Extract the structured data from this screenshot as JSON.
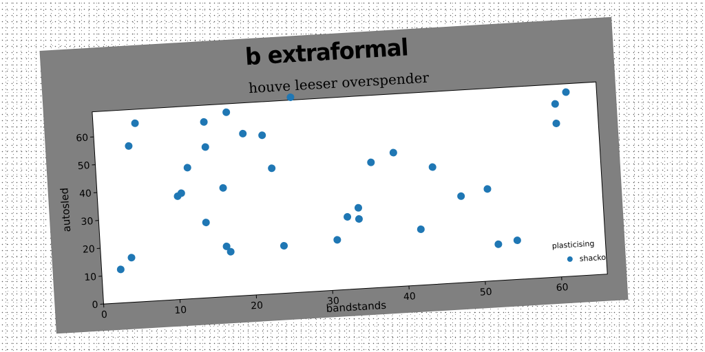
{
  "figure": {
    "suptitle": "b extraformal"
  },
  "chart_data": {
    "type": "scatter",
    "title": "houve leeser overspender",
    "xlabel": "bandstands",
    "ylabel": "autosled",
    "xlim": [
      0,
      66
    ],
    "ylim": [
      0,
      69
    ],
    "xticks": [
      0,
      10,
      20,
      30,
      40,
      50,
      60
    ],
    "yticks": [
      0,
      10,
      20,
      30,
      40,
      50,
      60
    ],
    "grid": false,
    "legend": {
      "title": "plasticising",
      "placement": "lower-right"
    },
    "series": [
      {
        "name": "shacko",
        "color": "#1f77b4",
        "x": [
          2.5,
          4,
          4.5,
          5.5,
          10.5,
          11,
          12,
          14,
          14.5,
          14.5,
          16.5,
          16.5,
          17,
          17.5,
          19.5,
          22,
          23,
          24,
          26,
          31,
          32.5,
          34,
          34,
          36,
          39,
          42,
          44,
          47.5,
          51,
          52,
          54.5,
          60.5,
          60.5,
          62
        ],
        "y": [
          12,
          16,
          56,
          64,
          37,
          38,
          47,
          27,
          54,
          63,
          18,
          39,
          16,
          66,
          58,
          57,
          45,
          17,
          70,
          18,
          26,
          29,
          25,
          45,
          48,
          20,
          42,
          31,
          33,
          13,
          14,
          62,
          55,
          66
        ]
      }
    ]
  }
}
